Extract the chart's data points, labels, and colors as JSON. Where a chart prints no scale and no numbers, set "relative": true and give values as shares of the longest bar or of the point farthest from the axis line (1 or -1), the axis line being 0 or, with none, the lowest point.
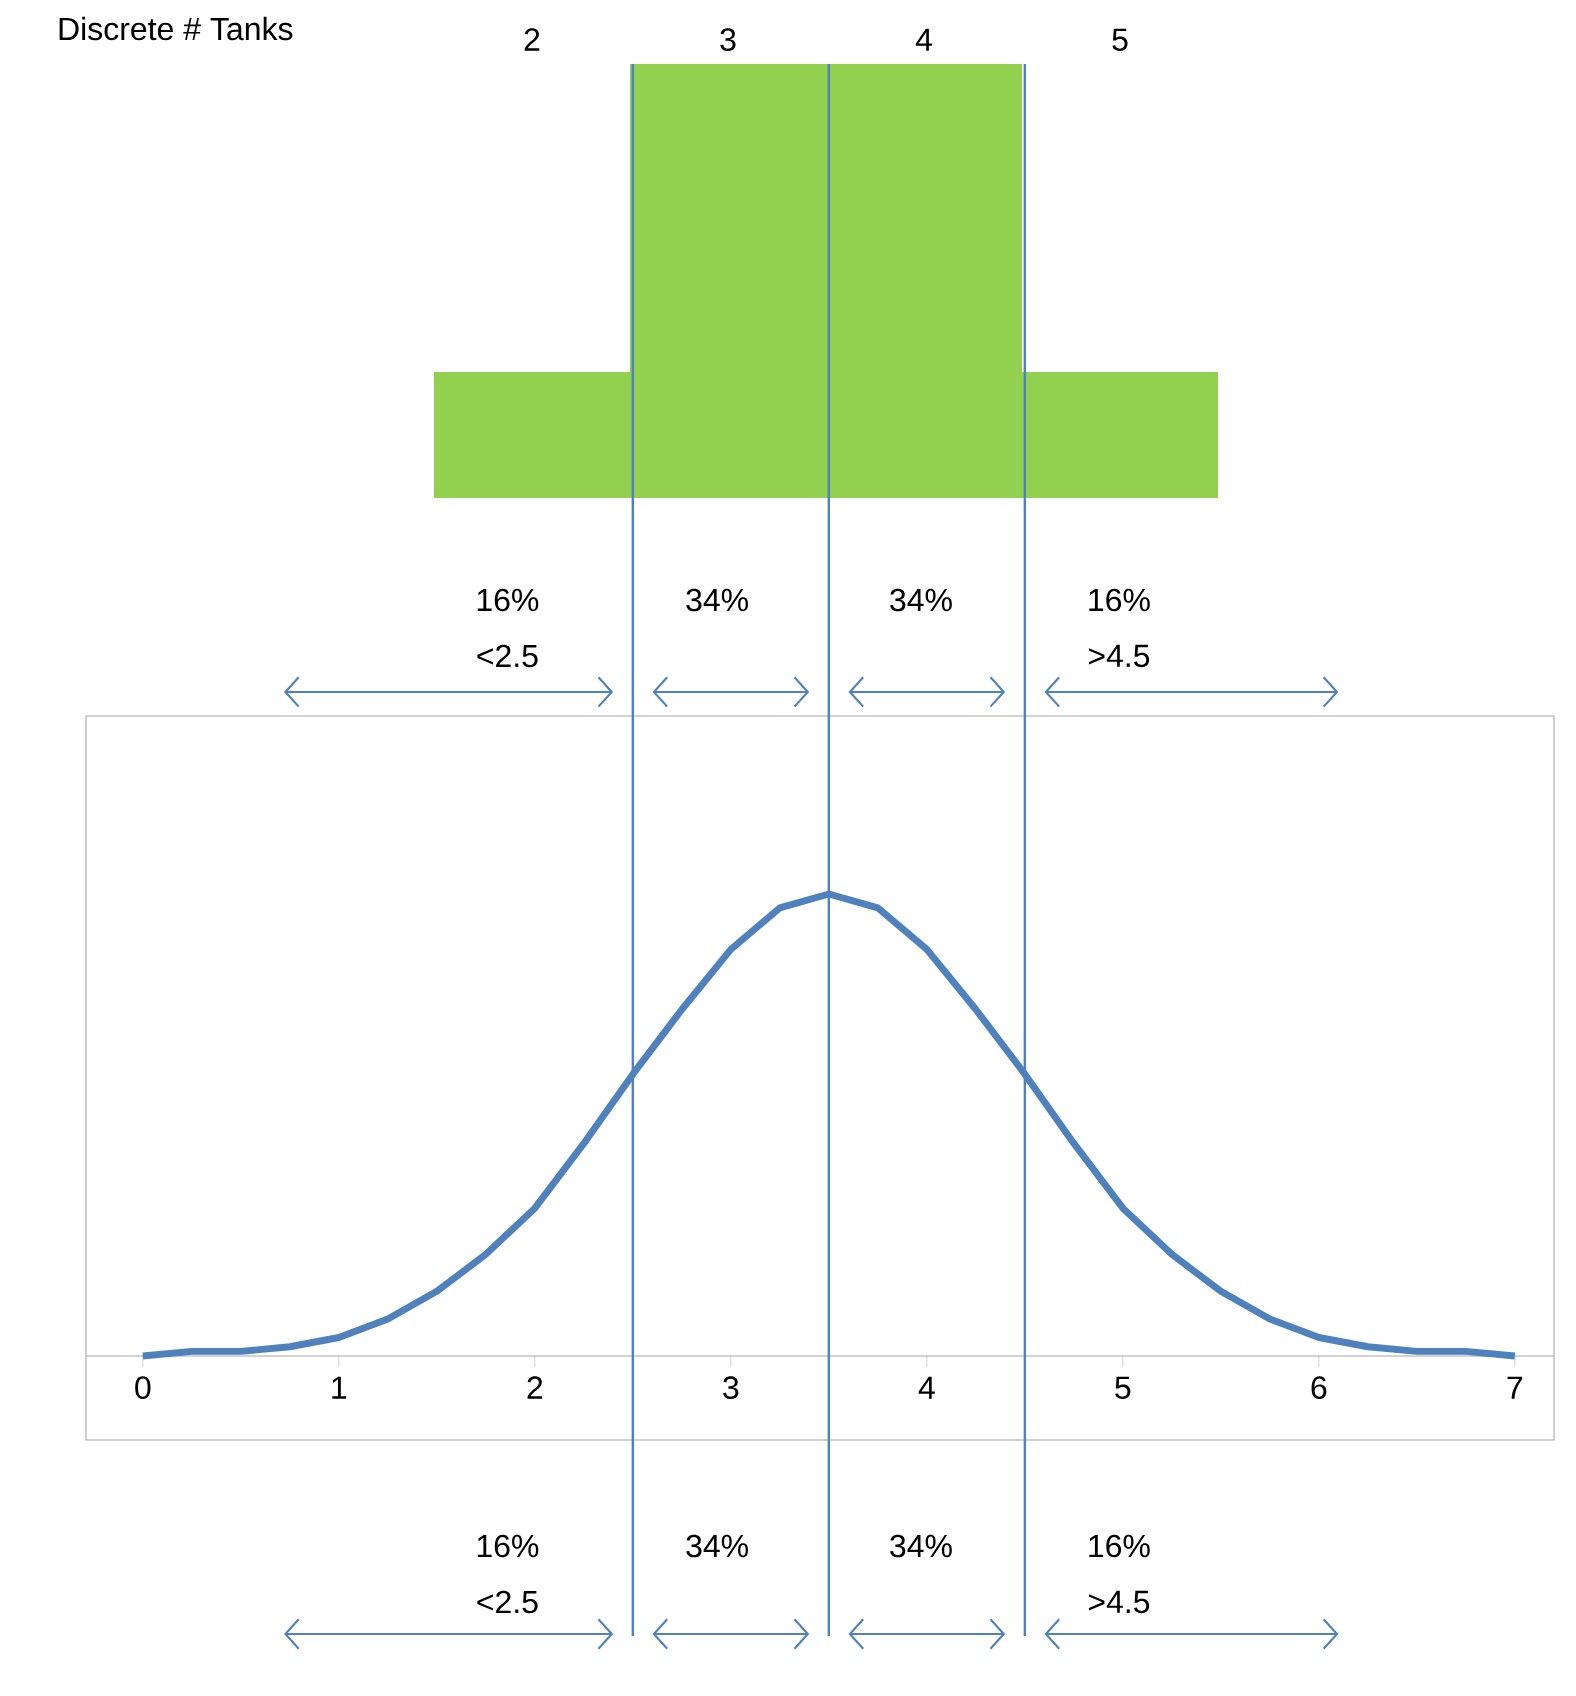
{
  "chart_data": [
    {
      "type": "bar",
      "xlabel": "Discrete # Tanks",
      "categories": [
        "2",
        "3",
        "4",
        "5"
      ],
      "values": [
        0.29,
        1,
        1,
        0.29
      ],
      "color": "#92d050",
      "relative": true
    },
    {
      "type": "line",
      "x": [
        0,
        0.25,
        0.5,
        0.75,
        1,
        1.25,
        1.5,
        1.75,
        2,
        2.25,
        2.5,
        2.75,
        3,
        3.25,
        3.5,
        3.75,
        4,
        4.25,
        4.5,
        4.75,
        5,
        5.25,
        5.5,
        5.75,
        6,
        6.25,
        6.5,
        6.75,
        7
      ],
      "values": [
        0,
        0.01,
        0.01,
        0.02,
        0.04,
        0.08,
        0.14,
        0.22,
        0.32,
        0.46,
        0.61,
        0.75,
        0.88,
        0.97,
        1,
        0.97,
        0.88,
        0.75,
        0.61,
        0.46,
        0.32,
        0.22,
        0.14,
        0.08,
        0.04,
        0.02,
        0.01,
        0.01,
        0
      ],
      "color": "#4f81bd",
      "relative": true,
      "xlim": [
        -0.29,
        7.2
      ],
      "xticks": [
        0,
        1,
        2,
        3,
        4,
        5,
        6,
        7
      ],
      "ref_lines": [
        {
          "axis": "x",
          "value": 2.5,
          "color": "#4f81bd"
        },
        {
          "axis": "x",
          "value": 3.5,
          "color": "#4f81bd"
        },
        {
          "axis": "x",
          "value": 4.5,
          "color": "#4f81bd"
        }
      ],
      "annotations": [
        "16%",
        "<2.5",
        "34%",
        "34%",
        "16%",
        ">4.5",
        "16%",
        "<2.5",
        "34%",
        "34%",
        "16%",
        ">4.5"
      ]
    }
  ]
}
